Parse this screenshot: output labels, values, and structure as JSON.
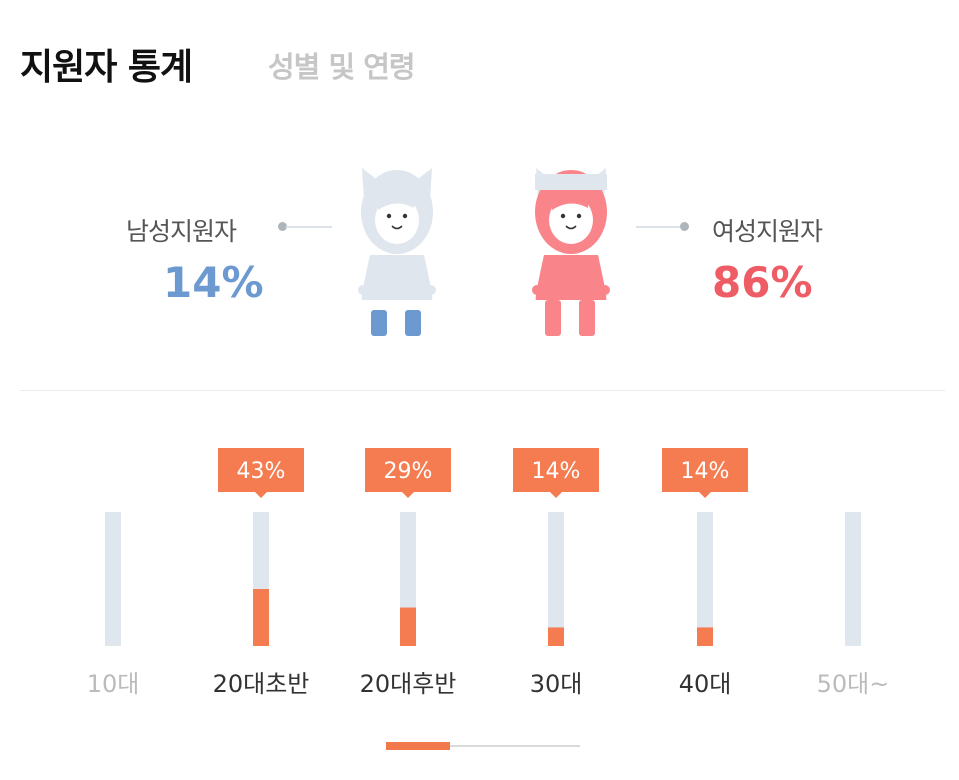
{
  "header": {
    "title": "지원자 통계",
    "subtitle": "성별 및 연령"
  },
  "gender": {
    "male": {
      "label": "남성지원자",
      "percent": "14%",
      "value": 14,
      "color": "#6c9ad0"
    },
    "female": {
      "label": "여성지원자",
      "percent": "86%",
      "value": 86,
      "color": "#ee5d66"
    }
  },
  "chart_data": {
    "type": "bar",
    "categories": [
      "10대",
      "20대초반",
      "20대후반",
      "30대",
      "40대",
      "50대~"
    ],
    "values": [
      0,
      43,
      29,
      14,
      14,
      0
    ],
    "labels": [
      "",
      "43%",
      "29%",
      "14%",
      "14%",
      ""
    ],
    "ylim": [
      0,
      100
    ],
    "grid": false,
    "bar_color": "#f47c50",
    "track_color": "#dfe6ee",
    "label_color_active": "#333333",
    "label_color_inactive": "#bbbbbb",
    "title": "",
    "xlabel": "",
    "ylabel": ""
  },
  "pager": {
    "pages": 3,
    "current": 1
  }
}
